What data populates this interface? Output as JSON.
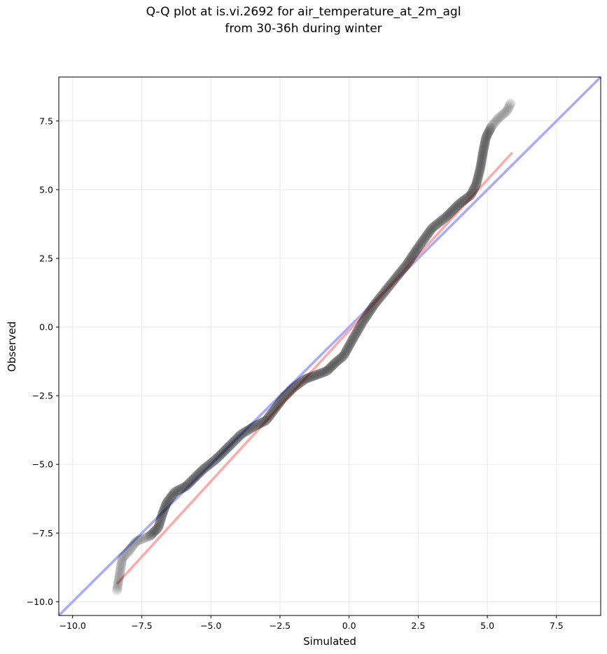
{
  "chart_data": {
    "type": "scatter",
    "title_lines": [
      "Q-Q plot at is.vi.2692 for air_temperature_at_2m_agl",
      "from 30-36h during winter"
    ],
    "xlabel": "Simulated",
    "ylabel": "Observed",
    "xlim": [
      -10.5,
      9.1
    ],
    "ylim": [
      -10.5,
      9.1
    ],
    "xticks": [
      -10.0,
      -7.5,
      -5.0,
      -2.5,
      0.0,
      2.5,
      5.0,
      7.5
    ],
    "yticks": [
      -10.0,
      -7.5,
      -5.0,
      -2.5,
      0.0,
      2.5,
      5.0,
      7.5
    ],
    "grid": true,
    "colors": {
      "points": "#000000",
      "identity_line": "#aaaaff",
      "fit_line": "#ffaaaa"
    },
    "identity_line": {
      "x": [
        -10.5,
        9.1
      ],
      "y": [
        -10.5,
        9.1
      ]
    },
    "fit_line": {
      "x": [
        -8.4,
        5.9
      ],
      "y": [
        -9.35,
        6.35
      ]
    },
    "qq_curve": {
      "x": [
        -8.4,
        -8.2,
        -8.0,
        -7.7,
        -7.2,
        -6.9,
        -6.75,
        -6.6,
        -6.3,
        -5.9,
        -5.3,
        -4.8,
        -4.3,
        -3.9,
        -3.4,
        -3.0,
        -2.7,
        -2.4,
        -2.0,
        -1.6,
        -1.2,
        -0.8,
        -0.5,
        -0.2,
        0.1,
        0.5,
        0.9,
        1.3,
        1.7,
        2.1,
        2.5,
        3.0,
        3.5,
        4.0,
        4.4,
        4.6,
        4.75,
        4.85,
        4.95,
        5.15,
        5.4,
        5.7,
        5.85
      ],
      "y": [
        -9.6,
        -8.4,
        -8.2,
        -7.8,
        -7.6,
        -7.3,
        -6.8,
        -6.4,
        -6.0,
        -5.8,
        -5.2,
        -4.8,
        -4.3,
        -3.9,
        -3.6,
        -3.4,
        -3.0,
        -2.6,
        -2.2,
        -1.9,
        -1.75,
        -1.6,
        -1.3,
        -1.05,
        -0.5,
        0.2,
        0.8,
        1.3,
        1.8,
        2.3,
        2.9,
        3.6,
        4.0,
        4.5,
        4.8,
        5.2,
        5.8,
        6.4,
        6.9,
        7.3,
        7.6,
        7.85,
        8.15
      ]
    }
  }
}
